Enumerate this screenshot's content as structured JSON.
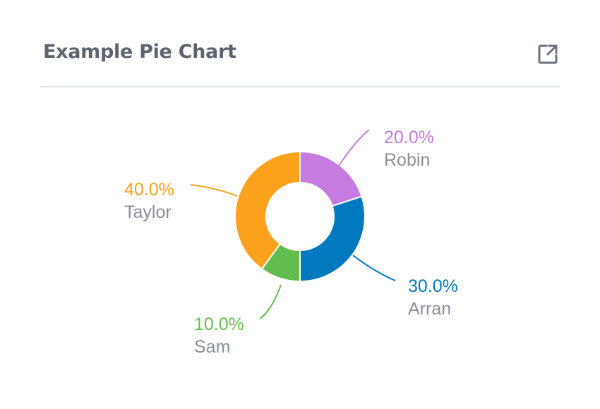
{
  "header": {
    "title": "Example Pie Chart",
    "open_icon": "open-in-new-icon"
  },
  "chart_data": {
    "type": "pie",
    "variant": "donut",
    "title": "Example Pie Chart",
    "slices": [
      {
        "label": "Robin",
        "value": 20.0,
        "percent_label": "20.0%",
        "color": "#c57be0"
      },
      {
        "label": "Arran",
        "value": 30.0,
        "percent_label": "30.0%",
        "color": "#0179bf"
      },
      {
        "label": "Sam",
        "value": 10.0,
        "percent_label": "10.0%",
        "color": "#63bd4e"
      },
      {
        "label": "Taylor",
        "value": 40.0,
        "percent_label": "40.0%",
        "color": "#fba11c"
      }
    ],
    "start_angle_deg": 0,
    "direction": "clockwise",
    "legend": "none"
  },
  "colors": {
    "title": "#5c6470",
    "label_name": "#8a9099",
    "divider": "#e3e6ea",
    "icon": "#6b7280"
  }
}
